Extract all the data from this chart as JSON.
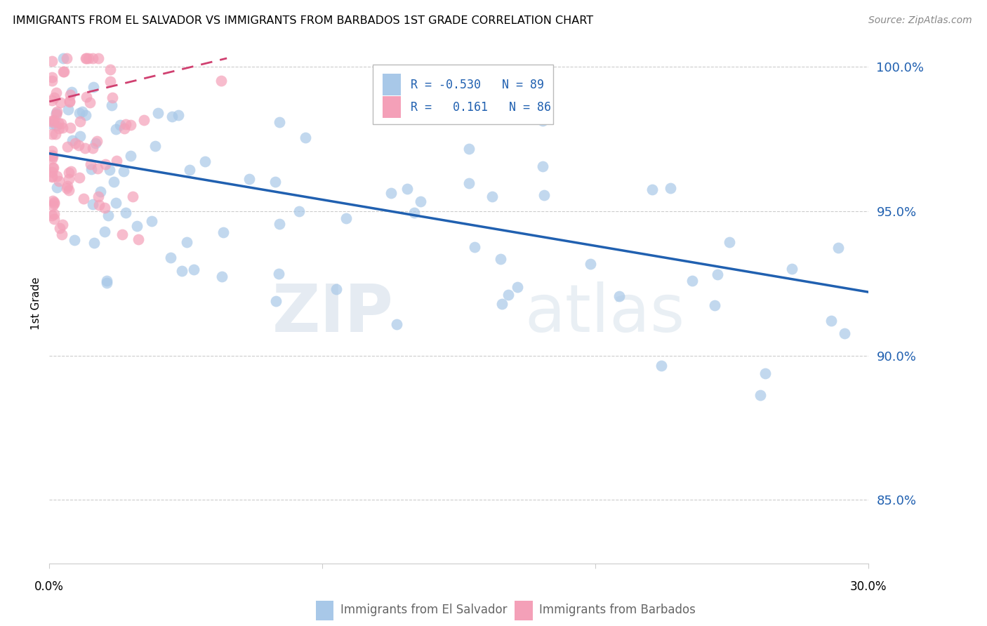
{
  "title": "IMMIGRANTS FROM EL SALVADOR VS IMMIGRANTS FROM BARBADOS 1ST GRADE CORRELATION CHART",
  "source": "Source: ZipAtlas.com",
  "ylabel": "1st Grade",
  "x_min": 0.0,
  "x_max": 0.3,
  "y_min": 0.828,
  "y_max": 1.008,
  "y_ticks": [
    0.85,
    0.9,
    0.95,
    1.0
  ],
  "y_tick_labels": [
    "85.0%",
    "90.0%",
    "95.0%",
    "100.0%"
  ],
  "blue_color": "#a8c8e8",
  "pink_color": "#f4a0b8",
  "blue_line_color": "#2060b0",
  "pink_line_color": "#d04070",
  "watermark_top": "ZIP",
  "watermark_bot": "atlas",
  "blue_line_x0": 0.0,
  "blue_line_y0": 0.97,
  "blue_line_x1": 0.3,
  "blue_line_y1": 0.922,
  "pink_line_x0": 0.0,
  "pink_line_y0": 0.988,
  "pink_line_x1": 0.065,
  "pink_line_y1": 1.003
}
